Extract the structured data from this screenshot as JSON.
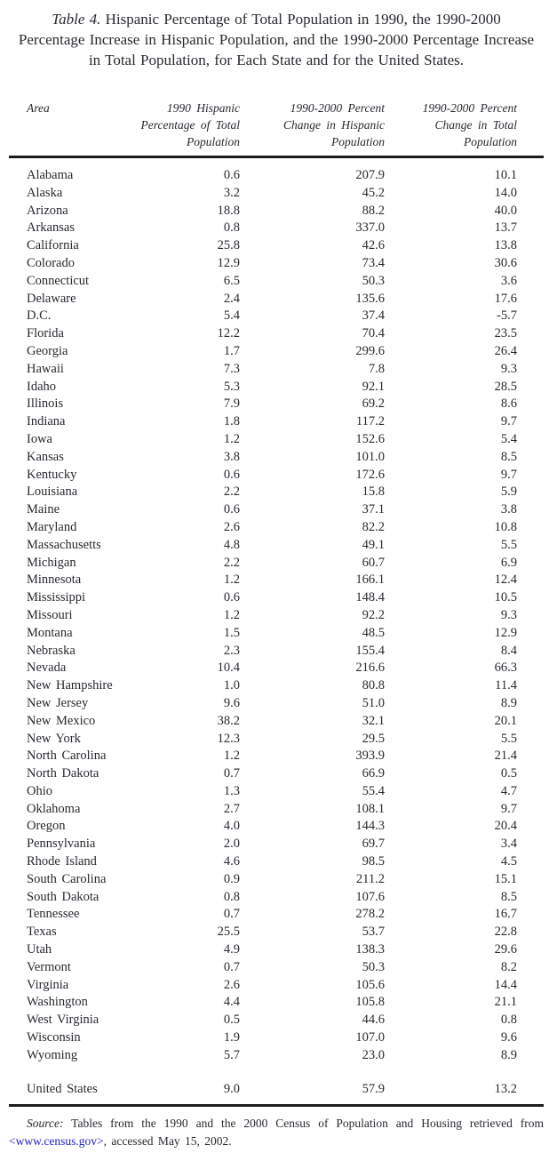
{
  "title": {
    "label": "Table 4.",
    "text": "Hispanic Percentage of Total Population in 1990, the 1990-2000 Percentage Increase in Hispanic Population, and the 1990-2000 Percentage Increase in Total Population, for Each State and for the United States."
  },
  "table": {
    "columns": [
      "Area",
      "1990 Hispanic\nPercentage of Total\nPopulation",
      "1990-2000 Percent\nChange in Hispanic\nPopulation",
      "1990-2000 Percent\nChange in Total\nPopulation"
    ],
    "rows": [
      [
        "Alabama",
        "0.6",
        "207.9",
        "10.1"
      ],
      [
        "Alaska",
        "3.2",
        "45.2",
        "14.0"
      ],
      [
        "Arizona",
        "18.8",
        "88.2",
        "40.0"
      ],
      [
        "Arkansas",
        "0.8",
        "337.0",
        "13.7"
      ],
      [
        "California",
        "25.8",
        "42.6",
        "13.8"
      ],
      [
        "Colorado",
        "12.9",
        "73.4",
        "30.6"
      ],
      [
        "Connecticut",
        "6.5",
        "50.3",
        "3.6"
      ],
      [
        "Delaware",
        "2.4",
        "135.6",
        "17.6"
      ],
      [
        "D.C.",
        "5.4",
        "37.4",
        "-5.7"
      ],
      [
        "Florida",
        "12.2",
        "70.4",
        "23.5"
      ],
      [
        "Georgia",
        "1.7",
        "299.6",
        "26.4"
      ],
      [
        "Hawaii",
        "7.3",
        "7.8",
        "9.3"
      ],
      [
        "Idaho",
        "5.3",
        "92.1",
        "28.5"
      ],
      [
        "Illinois",
        "7.9",
        "69.2",
        "8.6"
      ],
      [
        "Indiana",
        "1.8",
        "117.2",
        "9.7"
      ],
      [
        "Iowa",
        "1.2",
        "152.6",
        "5.4"
      ],
      [
        "Kansas",
        "3.8",
        "101.0",
        "8.5"
      ],
      [
        "Kentucky",
        "0.6",
        "172.6",
        "9.7"
      ],
      [
        "Louisiana",
        "2.2",
        "15.8",
        "5.9"
      ],
      [
        "Maine",
        "0.6",
        "37.1",
        "3.8"
      ],
      [
        "Maryland",
        "2.6",
        "82.2",
        "10.8"
      ],
      [
        "Massachusetts",
        "4.8",
        "49.1",
        "5.5"
      ],
      [
        "Michigan",
        "2.2",
        "60.7",
        "6.9"
      ],
      [
        "Minnesota",
        "1.2",
        "166.1",
        "12.4"
      ],
      [
        "Mississippi",
        "0.6",
        "148.4",
        "10.5"
      ],
      [
        "Missouri",
        "1.2",
        "92.2",
        "9.3"
      ],
      [
        "Montana",
        "1.5",
        "48.5",
        "12.9"
      ],
      [
        "Nebraska",
        "2.3",
        "155.4",
        "8.4"
      ],
      [
        "Nevada",
        "10.4",
        "216.6",
        "66.3"
      ],
      [
        "New Hampshire",
        "1.0",
        "80.8",
        "11.4"
      ],
      [
        "New Jersey",
        "9.6",
        "51.0",
        "8.9"
      ],
      [
        "New Mexico",
        "38.2",
        "32.1",
        "20.1"
      ],
      [
        "New York",
        "12.3",
        "29.5",
        "5.5"
      ],
      [
        "North Carolina",
        "1.2",
        "393.9",
        "21.4"
      ],
      [
        "North Dakota",
        "0.7",
        "66.9",
        "0.5"
      ],
      [
        "Ohio",
        "1.3",
        "55.4",
        "4.7"
      ],
      [
        "Oklahoma",
        "2.7",
        "108.1",
        "9.7"
      ],
      [
        "Oregon",
        "4.0",
        "144.3",
        "20.4"
      ],
      [
        "Pennsylvania",
        "2.0",
        "69.7",
        "3.4"
      ],
      [
        "Rhode Island",
        "4.6",
        "98.5",
        "4.5"
      ],
      [
        "South Carolina",
        "0.9",
        "211.2",
        "15.1"
      ],
      [
        "South Dakota",
        "0.8",
        "107.6",
        "8.5"
      ],
      [
        "Tennessee",
        "0.7",
        "278.2",
        "16.7"
      ],
      [
        "Texas",
        "25.5",
        "53.7",
        "22.8"
      ],
      [
        "Utah",
        "4.9",
        "138.3",
        "29.6"
      ],
      [
        "Vermont",
        "0.7",
        "50.3",
        "8.2"
      ],
      [
        "Virginia",
        "2.6",
        "105.6",
        "14.4"
      ],
      [
        "Washington",
        "4.4",
        "105.8",
        "21.1"
      ],
      [
        "West Virginia",
        "0.5",
        "44.6",
        "0.8"
      ],
      [
        "Wisconsin",
        "1.9",
        "107.0",
        "9.6"
      ],
      [
        "Wyoming",
        "5.7",
        "23.0",
        "8.9"
      ]
    ],
    "us_row": [
      "United States",
      "9.0",
      "57.9",
      "13.2"
    ]
  },
  "source": {
    "label": "Source:",
    "line1": "Tables from the 1990 and the 2000 Census of Population and Housing retrieved from",
    "link": "<www.census.gov>",
    "line2_rest": ", accessed May 15, 2002."
  },
  "colors": {
    "text": "#2c2830",
    "rule": "#1c1c1c",
    "link": "#2222bb",
    "background": "#ffffff"
  }
}
